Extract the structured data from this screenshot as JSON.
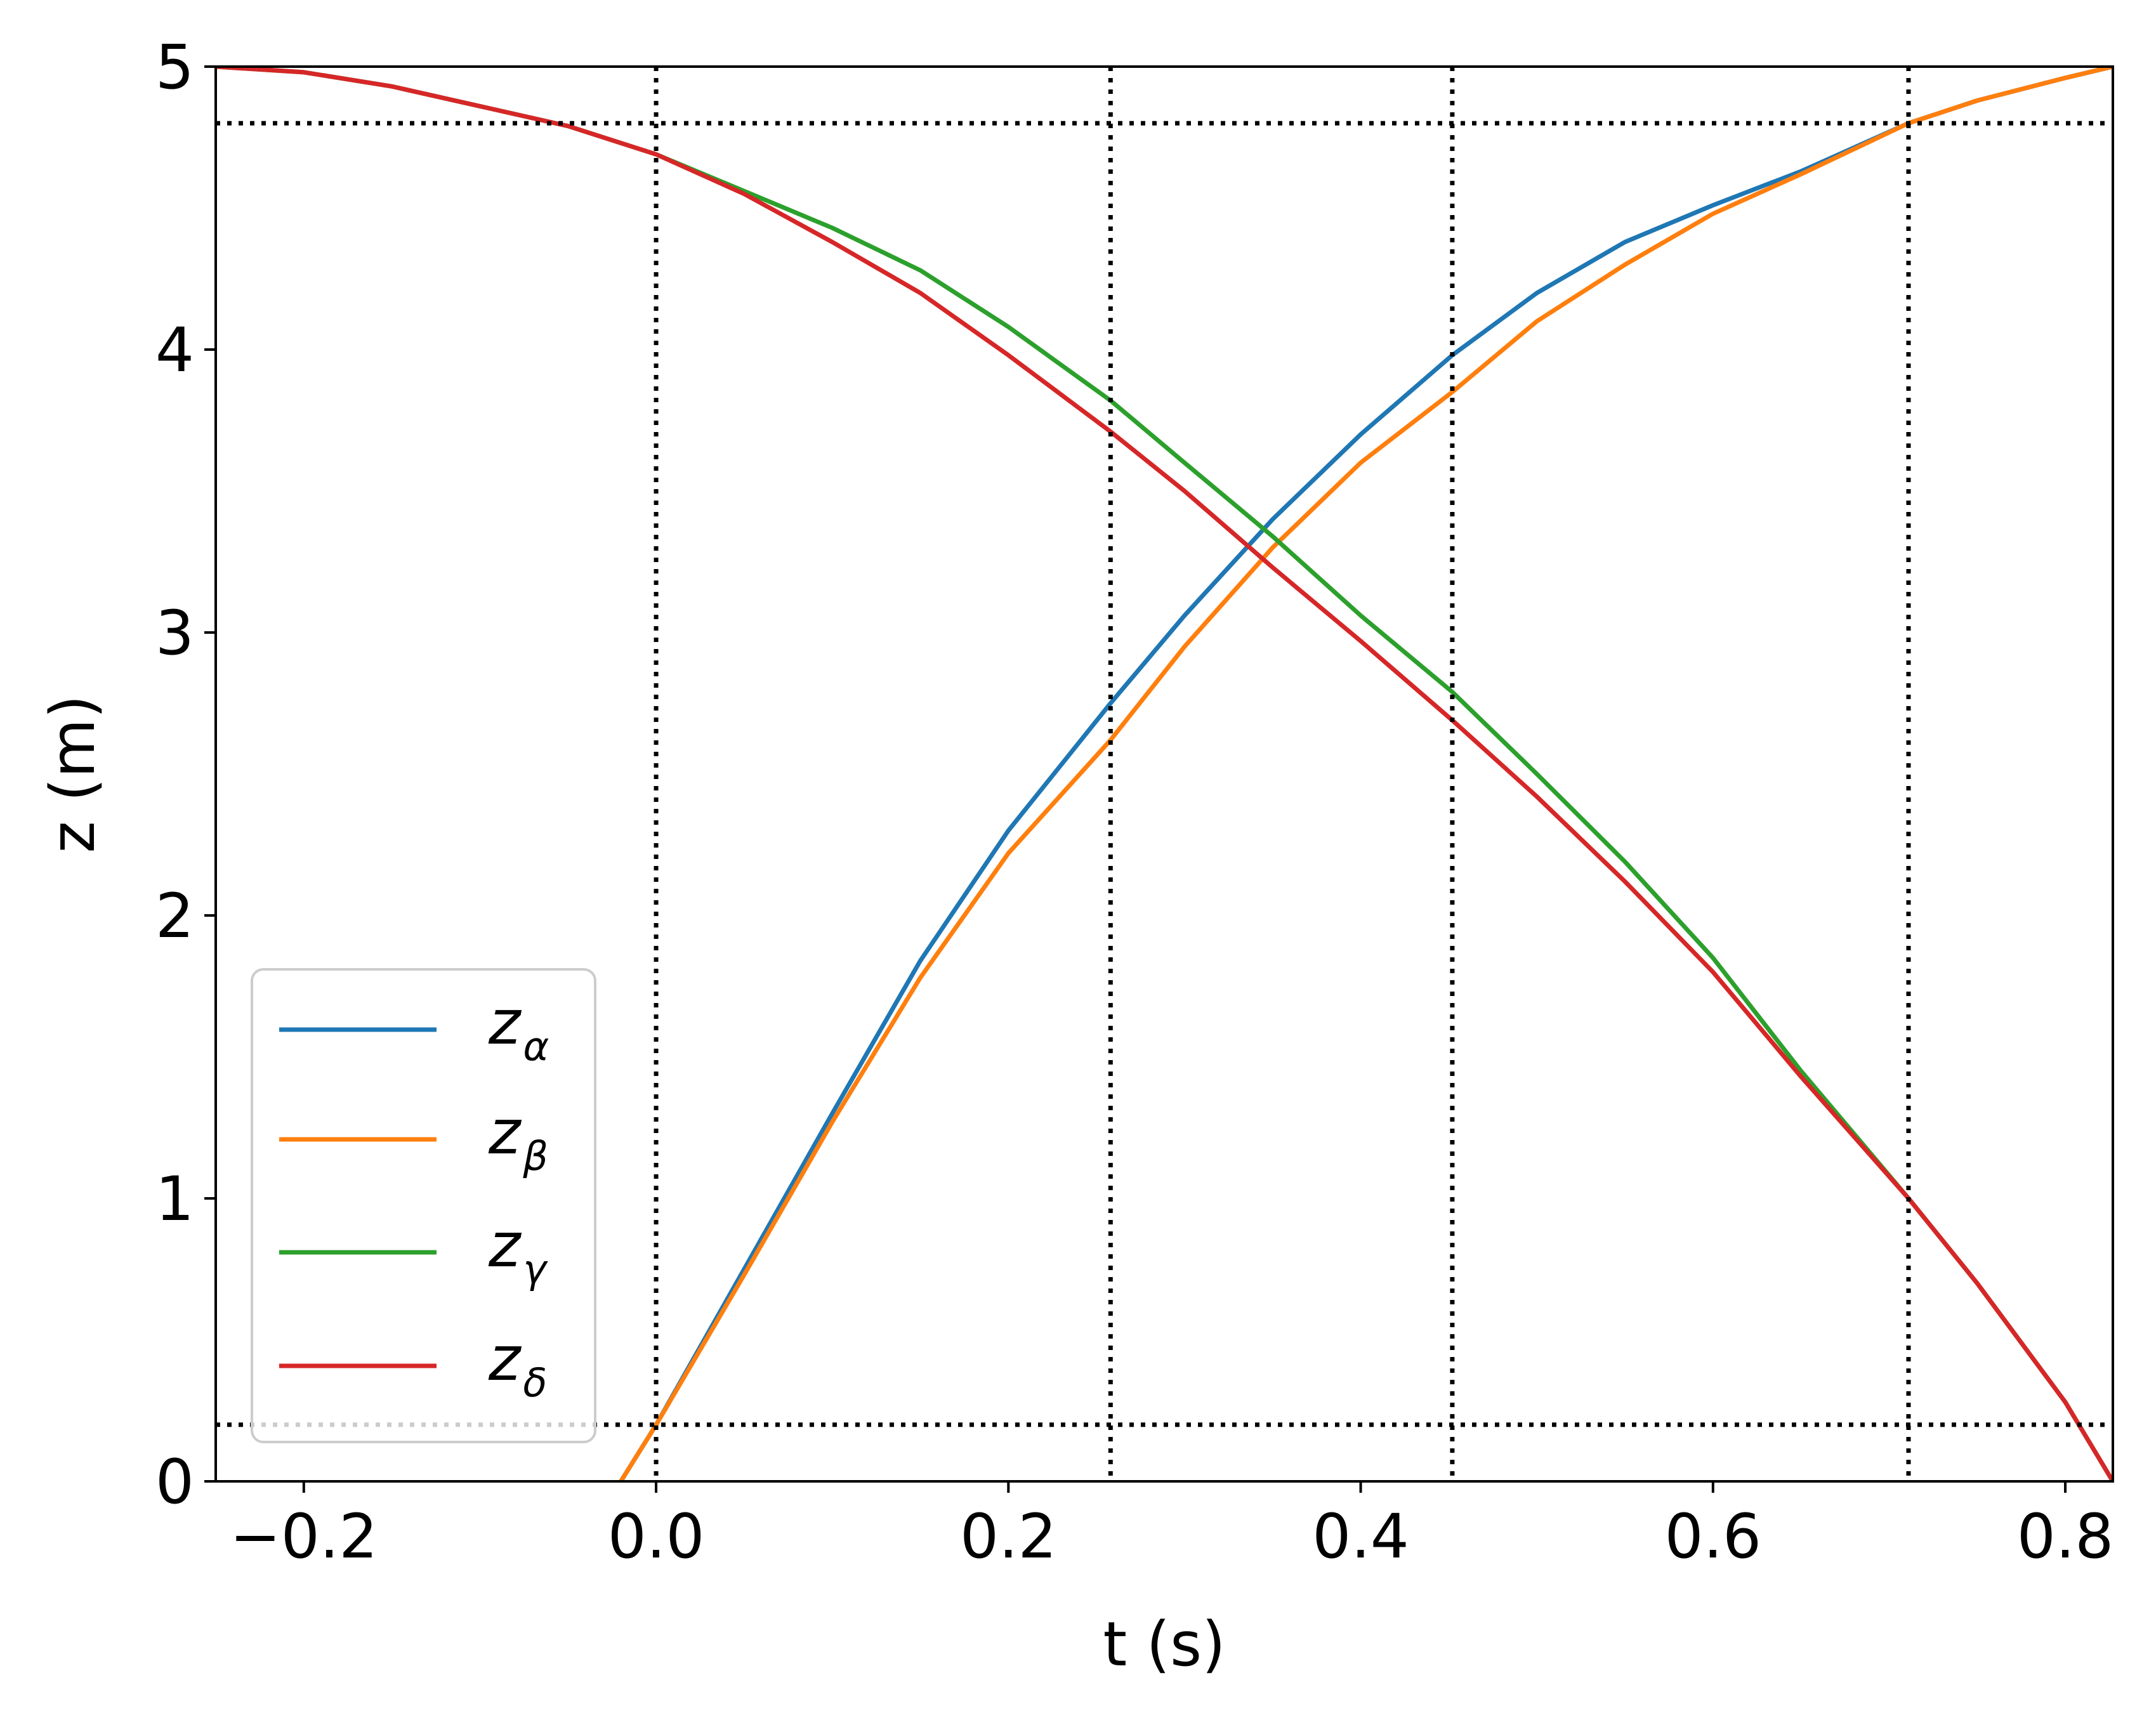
{
  "chart_data": {
    "type": "line",
    "xlabel": "t (s)",
    "ylabel": "z (m)",
    "xlim": [
      -0.25,
      0.827
    ],
    "ylim": [
      0,
      5
    ],
    "xticks": [
      -0.2,
      0.0,
      0.2,
      0.4,
      0.6,
      0.8
    ],
    "xtick_labels": [
      "−0.2",
      "0.0",
      "0.2",
      "0.4",
      "0.6",
      "0.8"
    ],
    "yticks": [
      0,
      1,
      2,
      3,
      4,
      5
    ],
    "ytick_labels": [
      "0",
      "1",
      "2",
      "3",
      "4",
      "5"
    ],
    "grid": false,
    "legend_position": "lower-left",
    "reference_lines": {
      "vertical_x": [
        0.0,
        0.258,
        0.452,
        0.711
      ],
      "horizontal_y": [
        0.2,
        4.8
      ],
      "style": "dotted",
      "color": "#000000"
    },
    "series": [
      {
        "name": "z",
        "subscript": "α",
        "color": "#1f77b4",
        "x": [
          -0.02,
          0.0,
          0.05,
          0.1,
          0.15,
          0.2,
          0.258,
          0.3,
          0.35,
          0.4,
          0.452,
          0.5,
          0.55,
          0.6,
          0.65,
          0.711,
          0.75,
          0.8,
          0.827
        ],
        "y": [
          0.0,
          0.2,
          0.75,
          1.3,
          1.84,
          2.3,
          2.75,
          3.06,
          3.4,
          3.7,
          3.98,
          4.2,
          4.38,
          4.51,
          4.63,
          4.8,
          4.88,
          4.96,
          5.0
        ]
      },
      {
        "name": "z",
        "subscript": "β",
        "color": "#ff7f0e",
        "x": [
          -0.02,
          0.0,
          0.05,
          0.1,
          0.15,
          0.2,
          0.258,
          0.3,
          0.35,
          0.4,
          0.452,
          0.5,
          0.55,
          0.6,
          0.65,
          0.711,
          0.75,
          0.8,
          0.827
        ],
        "y": [
          0.0,
          0.2,
          0.73,
          1.27,
          1.78,
          2.22,
          2.62,
          2.95,
          3.3,
          3.6,
          3.85,
          4.1,
          4.3,
          4.48,
          4.62,
          4.8,
          4.88,
          4.96,
          5.0
        ]
      },
      {
        "name": "z",
        "subscript": "γ",
        "color": "#2ca02c",
        "x": [
          -0.25,
          -0.2,
          -0.15,
          -0.1,
          -0.05,
          0.0,
          0.05,
          0.1,
          0.15,
          0.2,
          0.258,
          0.3,
          0.35,
          0.4,
          0.452,
          0.5,
          0.55,
          0.6,
          0.65,
          0.711,
          0.75,
          0.8,
          0.827
        ],
        "y": [
          5.0,
          4.98,
          4.93,
          4.86,
          4.79,
          4.69,
          4.56,
          4.43,
          4.28,
          4.08,
          3.82,
          3.6,
          3.34,
          3.06,
          2.79,
          2.5,
          2.19,
          1.85,
          1.45,
          1.0,
          0.7,
          0.28,
          0.0
        ]
      },
      {
        "name": "z",
        "subscript": "δ",
        "color": "#d62728",
        "x": [
          -0.25,
          -0.2,
          -0.15,
          -0.1,
          -0.05,
          0.0,
          0.05,
          0.1,
          0.15,
          0.2,
          0.258,
          0.3,
          0.35,
          0.4,
          0.452,
          0.5,
          0.55,
          0.6,
          0.65,
          0.711,
          0.75,
          0.8,
          0.827
        ],
        "y": [
          5.0,
          4.98,
          4.93,
          4.86,
          4.79,
          4.69,
          4.55,
          4.38,
          4.2,
          3.98,
          3.71,
          3.5,
          3.23,
          2.97,
          2.69,
          2.42,
          2.12,
          1.8,
          1.43,
          1.0,
          0.7,
          0.28,
          0.0
        ]
      }
    ]
  }
}
